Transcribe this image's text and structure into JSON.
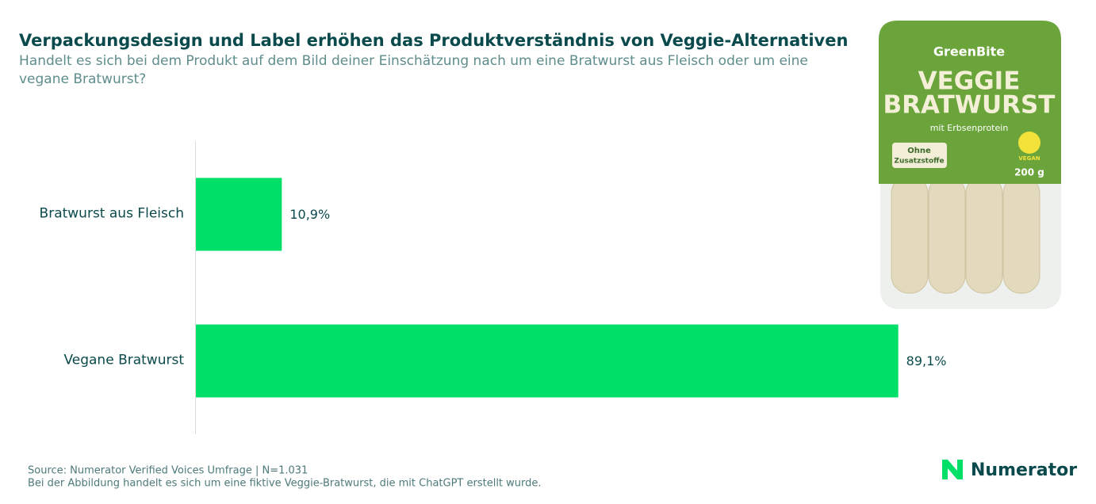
{
  "chart_data": {
    "type": "hbar",
    "title": "Verpackungsdesign und Label erhöhen das Produktverständnis von Veggie-Alternativen",
    "subtitle": "Handelt es sich bei dem Produkt auf dem Bild deiner Einschätzung nach um eine Bratwurst aus Fleisch oder um eine vegane Bratwurst?",
    "categories": [
      "Bratwurst aus Fleisch",
      "Vegane Bratwurst"
    ],
    "values": [
      10.9,
      89.1
    ],
    "value_labels": [
      "10,9%",
      "89,1%"
    ],
    "color": "#00e068",
    "xlim": [
      0,
      100
    ]
  },
  "product_image": {
    "brand": "GreenBite",
    "name_line1": "VEGGIE",
    "name_line2": "BRATWURST",
    "claim": "mit Erbsenprotein",
    "badge_line1": "Ohne",
    "badge_line2": "Zusatzstoffe",
    "vegan": "VEGAN",
    "weight": "200 g"
  },
  "source": "Source: Numerator Verified Voices Umfrage | N=1.031",
  "note": "Bei der Abbildung handelt es sich um eine fiktive Veggie-Bratwurst, die mit ChatGPT erstellt wurde.",
  "logo": "Numerator"
}
